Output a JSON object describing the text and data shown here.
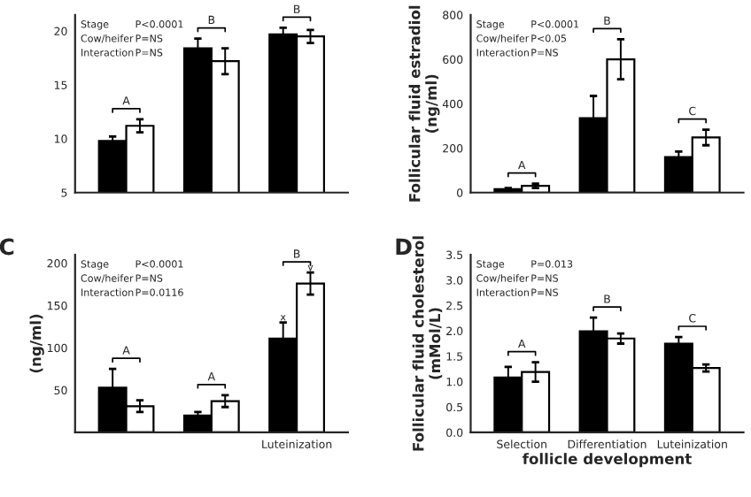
{
  "chart_data": [
    {
      "type": "bar",
      "categories": [
        null,
        null,
        null
      ],
      "ylim": [
        5,
        21.5
      ],
      "yticks": [
        5,
        10,
        15,
        20
      ],
      "grid": false,
      "series": [
        {
          "color": "#000000",
          "values": [
            9.8,
            18.4,
            19.7
          ],
          "errors": [
            0.4,
            0.9,
            0.6
          ]
        },
        {
          "color": "#ffffff",
          "values": [
            11.2,
            17.2,
            19.5
          ],
          "errors": [
            0.6,
            1.2,
            0.6
          ]
        }
      ],
      "annotations": [
        "Stage",
        "Cow/heifer",
        "Interaction",
        "P<0.0001",
        "P=NS",
        "P=NS",
        "A",
        "B",
        "B"
      ]
    },
    {
      "type": "bar",
      "categories": [
        null,
        null,
        null
      ],
      "ylim": [
        0,
        800
      ],
      "yticks": [
        0,
        200,
        400,
        600,
        800
      ],
      "grid": false,
      "ylabel": "Follicular fluid estradiol\n(ng/ml)",
      "series": [
        {
          "color": "#000000",
          "values": [
            15,
            335,
            160
          ],
          "errors": [
            5,
            100,
            25
          ]
        },
        {
          "color": "#ffffff",
          "values": [
            30,
            600,
            248
          ],
          "errors": [
            10,
            90,
            35
          ]
        }
      ],
      "annotations": [
        "Stage",
        "Cow/heifer",
        "Interaction",
        "P<0.0001",
        "P<0.05",
        "P=NS",
        "A",
        "B",
        "C"
      ]
    },
    {
      "type": "bar",
      "title": "C",
      "categories": [
        null,
        null,
        "Luteinization"
      ],
      "ylim": [
        0,
        210
      ],
      "yticks": [
        50,
        100,
        150,
        200
      ],
      "grid": false,
      "ylabel": "(ng/ml)",
      "series": [
        {
          "color": "#000000",
          "values": [
            53,
            20,
            111
          ],
          "errors": [
            22,
            4,
            19
          ],
          "value_labels": [
            null,
            null,
            "x"
          ]
        },
        {
          "color": "#ffffff",
          "values": [
            31,
            37,
            176
          ],
          "errors": [
            7,
            7,
            13
          ],
          "value_labels": [
            null,
            null,
            "y"
          ]
        }
      ],
      "annotations": [
        "Stage",
        "Cow/heifer",
        "Interaction",
        "P<0.0001",
        "P=NS",
        "P=0.0116",
        "A",
        "A",
        "B"
      ]
    },
    {
      "type": "bar",
      "title": "D",
      "categories": [
        "Selection",
        "Differentiation",
        "Luteinization"
      ],
      "ylim": [
        0,
        3.5
      ],
      "yticks": [
        {
          "value": 0,
          "label": "0.0"
        },
        0.5,
        {
          "value": 1,
          "label": "1.0"
        },
        1.5,
        {
          "value": 2,
          "label": "2.0"
        },
        2.5,
        {
          "value": 3,
          "label": "3.0"
        },
        3.5
      ],
      "grid": false,
      "ylabel": "Follicular fluid cholesterol\n(mMol/L)",
      "xlabel": "follicle development",
      "series": [
        {
          "color": "#000000",
          "values": [
            1.08,
            1.99,
            1.75
          ],
          "errors": [
            0.21,
            0.27,
            0.13
          ]
        },
        {
          "color": "#ffffff",
          "values": [
            1.19,
            1.85,
            1.27
          ],
          "errors": [
            0.19,
            0.1,
            0.07
          ]
        }
      ],
      "annotations": [
        "Stage",
        "Cow/heifer",
        "Interaction",
        "P=0.013",
        "P=NS",
        "P=NS",
        "A",
        "B",
        "C"
      ]
    }
  ]
}
